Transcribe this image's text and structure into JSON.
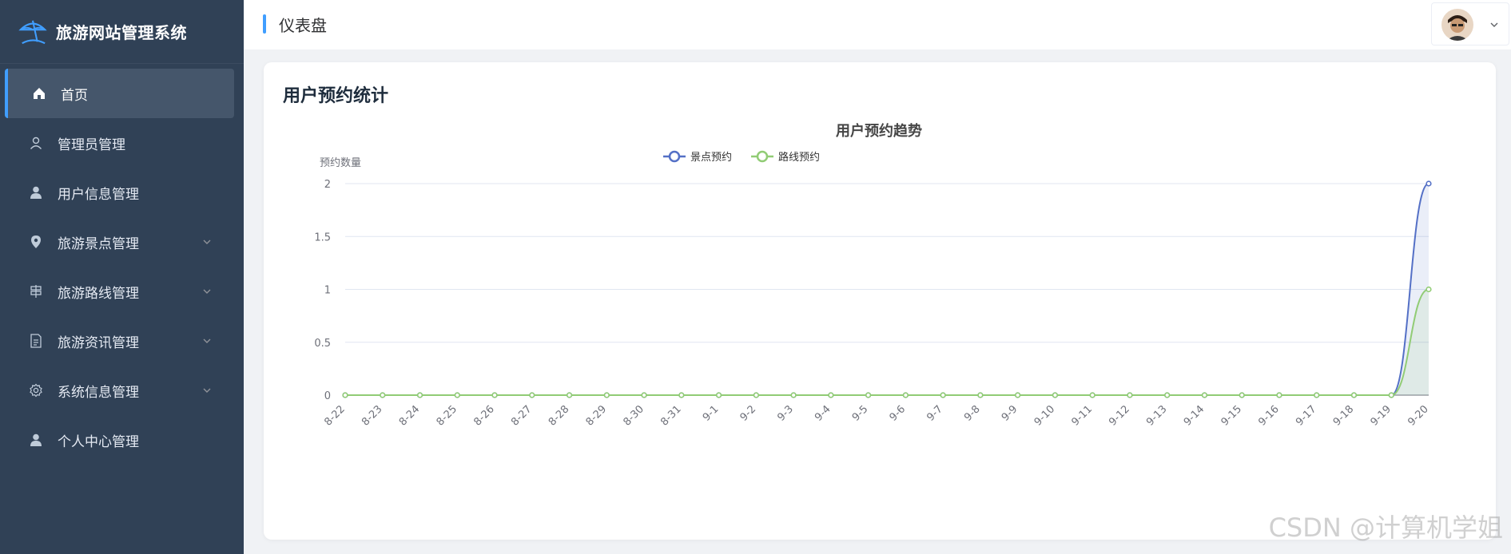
{
  "brand": {
    "title": "旅游网站管理系统",
    "icon": "umbrella-icon"
  },
  "sidebar": {
    "items": [
      {
        "label": "首页",
        "icon": "home-icon",
        "active": true,
        "expandable": false
      },
      {
        "label": "管理员管理",
        "icon": "user-outline-icon",
        "active": false,
        "expandable": false
      },
      {
        "label": "用户信息管理",
        "icon": "user-icon",
        "active": false,
        "expandable": false
      },
      {
        "label": "旅游景点管理",
        "icon": "location-pin-icon",
        "active": false,
        "expandable": true
      },
      {
        "label": "旅游路线管理",
        "icon": "signpost-icon",
        "active": false,
        "expandable": true
      },
      {
        "label": "旅游资讯管理",
        "icon": "document-icon",
        "active": false,
        "expandable": true
      },
      {
        "label": "系统信息管理",
        "icon": "gear-icon",
        "active": false,
        "expandable": true
      },
      {
        "label": "个人中心管理",
        "icon": "user-icon",
        "active": false,
        "expandable": false
      }
    ]
  },
  "header": {
    "title": "仪表盘"
  },
  "card": {
    "title": "用户预约统计"
  },
  "colors": {
    "accent": "#409eff",
    "series1": "#5470c6",
    "series2": "#91cc75",
    "sidebar_bg": "#304156"
  },
  "chart_data": {
    "type": "line",
    "title": "用户预约趋势",
    "ylabel": "预约数量",
    "xlabel": "",
    "ylim": [
      0,
      2
    ],
    "yticks": [
      "0",
      "0.5",
      "1",
      "1.5",
      "2"
    ],
    "legend_position": "top-center",
    "grid": true,
    "categories": [
      "8-22",
      "8-23",
      "8-24",
      "8-25",
      "8-26",
      "8-27",
      "8-28",
      "8-29",
      "8-30",
      "8-31",
      "9-1",
      "9-2",
      "9-3",
      "9-4",
      "9-5",
      "9-6",
      "9-7",
      "9-8",
      "9-9",
      "9-10",
      "9-11",
      "9-12",
      "9-13",
      "9-14",
      "9-15",
      "9-16",
      "9-17",
      "9-18",
      "9-19",
      "9-20"
    ],
    "series": [
      {
        "name": "景点预约",
        "color": "#5470c6",
        "values": [
          0,
          0,
          0,
          0,
          0,
          0,
          0,
          0,
          0,
          0,
          0,
          0,
          0,
          0,
          0,
          0,
          0,
          0,
          0,
          0,
          0,
          0,
          0,
          0,
          0,
          0,
          0,
          0,
          0,
          2
        ]
      },
      {
        "name": "路线预约",
        "color": "#91cc75",
        "values": [
          0,
          0,
          0,
          0,
          0,
          0,
          0,
          0,
          0,
          0,
          0,
          0,
          0,
          0,
          0,
          0,
          0,
          0,
          0,
          0,
          0,
          0,
          0,
          0,
          0,
          0,
          0,
          0,
          0,
          1
        ]
      }
    ]
  },
  "watermark": "CSDN @计算机学姐"
}
